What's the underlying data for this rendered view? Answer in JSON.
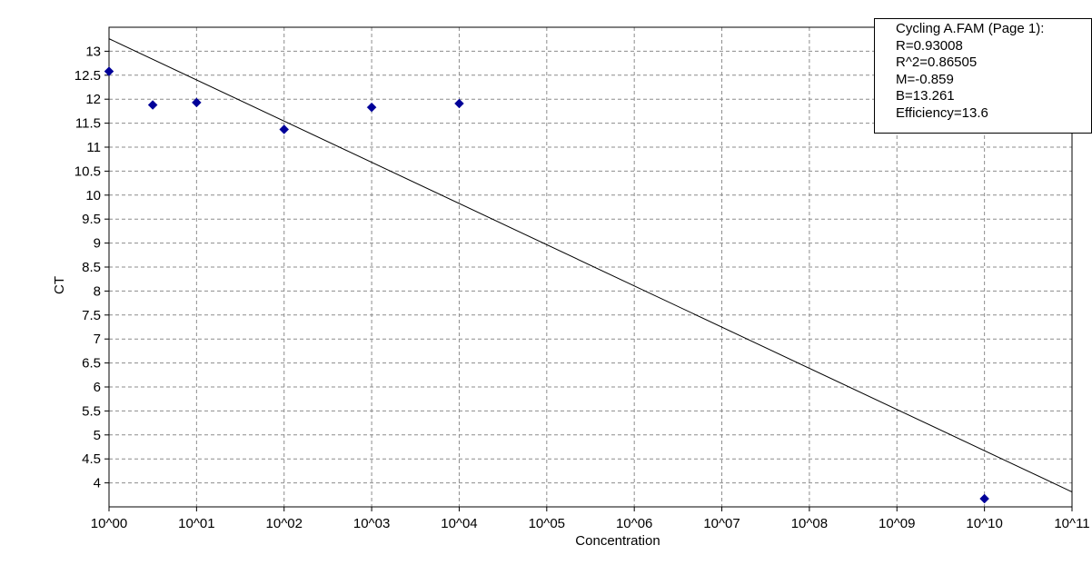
{
  "chart_data": {
    "type": "scatter",
    "title": "",
    "xlabel": "Concentration",
    "ylabel": "CT",
    "x_scale": "log10",
    "xlim": [
      1,
      100000000000
    ],
    "ylim": [
      3.5,
      13.5
    ],
    "grid": true,
    "grid_style": "dashed",
    "x_tick_labels": [
      "10^00",
      "10^01",
      "10^02",
      "10^03",
      "10^04",
      "10^05",
      "10^06",
      "10^07",
      "10^08",
      "10^09",
      "10^10",
      "10^11"
    ],
    "x_tick_values": [
      1,
      10,
      100,
      1000,
      10000,
      100000,
      1000000,
      10000000,
      100000000,
      1000000000,
      10000000000,
      100000000000
    ],
    "y_tick_labels": [
      "4",
      "4.5",
      "5",
      "5.5",
      "6",
      "6.5",
      "7",
      "7.5",
      "8",
      "8.5",
      "9",
      "9.5",
      "10",
      "10.5",
      "11",
      "11.5",
      "12",
      "12.5",
      "13"
    ],
    "y_tick_values": [
      4,
      4.5,
      5,
      5.5,
      6,
      6.5,
      7,
      7.5,
      8,
      8.5,
      9,
      9.5,
      10,
      10.5,
      11,
      11.5,
      12,
      12.5,
      13
    ],
    "points": [
      {
        "x": 1,
        "y": 12.58
      },
      {
        "x": 3.16,
        "y": 11.88
      },
      {
        "x": 10,
        "y": 11.93
      },
      {
        "x": 100,
        "y": 11.37
      },
      {
        "x": 1000,
        "y": 11.83
      },
      {
        "x": 10000,
        "y": 11.91
      },
      {
        "x": 10000000000,
        "y": 3.67
      }
    ],
    "fit_line": {
      "slope_per_decade": -0.859,
      "intercept": 13.261,
      "x_start": 1,
      "x_end": 100000000000
    },
    "point_color": "#000099",
    "line_color": "#000000",
    "grid_color": "#8c8c8c",
    "legend_placement": "top-right",
    "stats": {
      "title": "Cycling A.FAM (Page 1):",
      "lines": [
        "R=0.93008",
        "R^2=0.86505",
        "M=-0.859",
        "B=13.261",
        "Efficiency=13.6"
      ]
    }
  }
}
